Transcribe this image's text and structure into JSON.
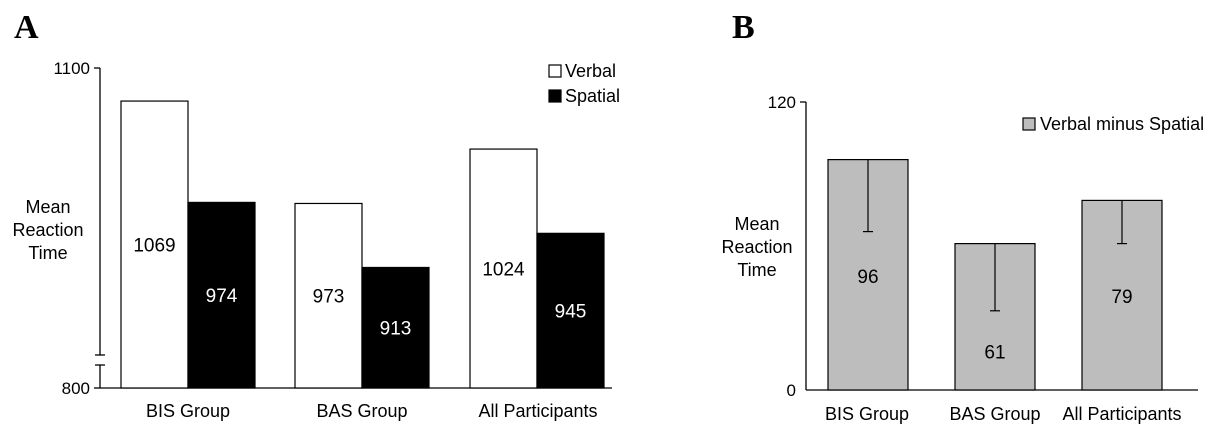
{
  "chart_data": [
    {
      "type": "bar",
      "panel_label": "A",
      "categories": [
        "BIS Group",
        "BAS Group",
        "All Participants"
      ],
      "series": [
        {
          "name": "Verbal",
          "values": [
            1069,
            973,
            1024
          ],
          "color": "#ffffff"
        },
        {
          "name": "Spatial",
          "values": [
            974,
            913,
            945
          ],
          "color": "#000000"
        }
      ],
      "ylabel_lines": [
        "Mean",
        "Reaction",
        "Time"
      ],
      "ylim": [
        800,
        1100
      ],
      "axis_break": true,
      "yticks": [
        800,
        1100
      ],
      "grid": false,
      "legend_position": "top-right",
      "data_labels": true
    },
    {
      "type": "bar",
      "panel_label": "B",
      "categories": [
        "BIS Group",
        "BAS Group",
        "All Participants"
      ],
      "series": [
        {
          "name": "Verbal minus Spatial",
          "values": [
            96,
            61,
            79
          ],
          "color": "#bdbdbd",
          "error_low": [
            66,
            33,
            61
          ]
        }
      ],
      "ylabel_lines": [
        "Mean",
        "Reaction",
        "Time"
      ],
      "ylim": [
        0,
        120
      ],
      "yticks": [
        0,
        120
      ],
      "grid": false,
      "legend_position": "top-right",
      "data_labels": true
    }
  ]
}
